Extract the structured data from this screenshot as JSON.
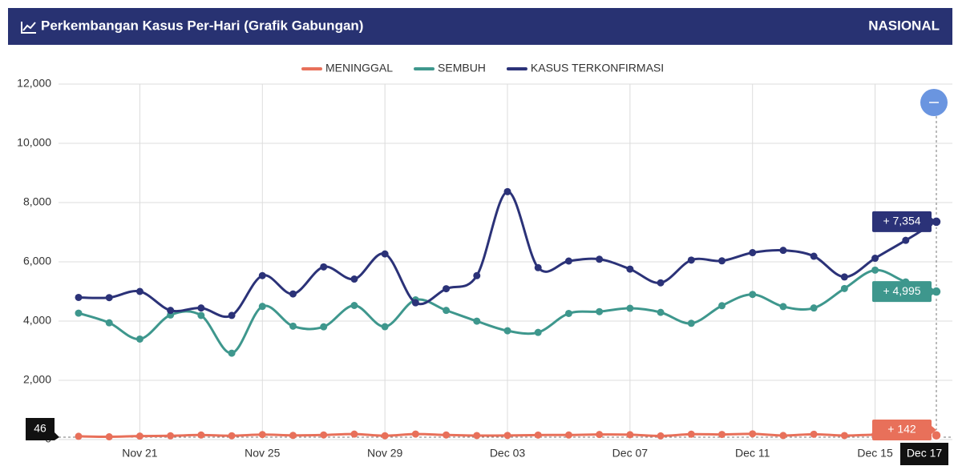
{
  "header": {
    "title": "Perkembangan Kasus Per-Hari (Grafik Gabungan)",
    "scope": "NASIONAL"
  },
  "chart_data": {
    "type": "line",
    "categories": [
      null,
      null,
      "Nov 21",
      null,
      null,
      null,
      "Nov 25",
      null,
      null,
      null,
      "Nov 29",
      null,
      null,
      null,
      "Dec 03",
      null,
      null,
      null,
      "Dec 07",
      null,
      null,
      null,
      "Dec 11",
      null,
      null,
      null,
      "Dec 15",
      null,
      "Dec 17"
    ],
    "series": [
      {
        "name": "MENINGGAL",
        "color": "#e8705a",
        "values": [
          110,
          94,
          118,
          128,
          154,
          130,
          169,
          141,
          156,
          185,
          130,
          187,
          156,
          136,
          139,
          153,
          155,
          171,
          165,
          125,
          181,
          173,
          193,
          138,
          180,
          136,
          167,
          164,
          142
        ],
        "value_labels": [
          null,
          null,
          null,
          null,
          null,
          null,
          null,
          null,
          null,
          null,
          null,
          null,
          null,
          null,
          null,
          null,
          null,
          null,
          null,
          null,
          null,
          null,
          null,
          null,
          null,
          null,
          null,
          null,
          "+ 142"
        ]
      },
      {
        "name": "SEMBUH",
        "color": "#3e978d",
        "values": [
          4268,
          3942,
          3393,
          4205,
          4190,
          2917,
          4495,
          3829,
          3807,
          4527,
          3810,
          4715,
          4361,
          3997,
          3673,
          3618,
          4257,
          4319,
          4431,
          4294,
          3924,
          4520,
          4900,
          4489,
          4441,
          5099,
          5720,
          5322,
          4995
        ],
        "value_labels": [
          null,
          null,
          null,
          null,
          null,
          null,
          null,
          null,
          null,
          null,
          null,
          null,
          null,
          null,
          null,
          null,
          null,
          null,
          null,
          null,
          null,
          null,
          null,
          null,
          null,
          null,
          null,
          null,
          "+ 4,995"
        ]
      },
      {
        "name": "KASUS TERKONFIRMASI",
        "color": "#2b3278",
        "values": [
          4798,
          4792,
          5000,
          4360,
          4442,
          4192,
          5534,
          4917,
          5828,
          5418,
          6267,
          4617,
          5092,
          5533,
          8369,
          5803,
          6027,
          6087,
          5754,
          5292,
          6058,
          6033,
          6310,
          6388,
          6189,
          5489,
          6120,
          6725,
          7354
        ],
        "value_labels": [
          null,
          null,
          null,
          null,
          null,
          null,
          null,
          null,
          null,
          null,
          null,
          null,
          null,
          null,
          null,
          null,
          null,
          null,
          null,
          null,
          null,
          null,
          null,
          null,
          null,
          null,
          null,
          null,
          "+ 7,354"
        ]
      }
    ],
    "ylim": [
      0,
      12000
    ],
    "yticks": [
      0,
      {
        "value": 2000,
        "label": "2,000"
      },
      {
        "value": 4000,
        "label": "4,000"
      },
      {
        "value": 6000,
        "label": "6,000"
      },
      {
        "value": 8000,
        "label": "8,000"
      },
      {
        "value": 10000,
        "label": "10,000"
      },
      {
        "value": 12000,
        "label": "12,000"
      }
    ],
    "grid": true,
    "legend": "top",
    "annotation": "46"
  }
}
